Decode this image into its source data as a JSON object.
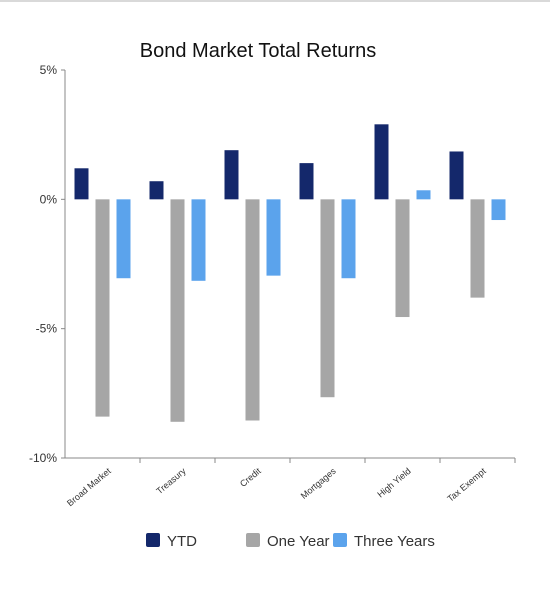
{
  "chart_data": {
    "type": "bar",
    "title": "Bond Market Total Returns",
    "xlabel": "",
    "ylabel": "",
    "categories": [
      "Broad Market",
      "Treasury",
      "Credit",
      "Mortgages",
      "High Yield",
      "Tax Exempt"
    ],
    "series": [
      {
        "name": "YTD",
        "color": "#14286b",
        "values": [
          1.2,
          0.7,
          1.9,
          1.4,
          2.9,
          1.85
        ]
      },
      {
        "name": "One Year",
        "color": "#a6a6a6",
        "values": [
          -8.4,
          -8.6,
          -8.55,
          -7.65,
          -4.55,
          -3.8
        ]
      },
      {
        "name": "Three Years",
        "color": "#5ba3ec",
        "values": [
          -3.05,
          -3.15,
          -2.95,
          -3.05,
          0.35,
          -0.8
        ]
      }
    ],
    "ylim": [
      -10,
      5
    ],
    "yticks": [
      5,
      0,
      -5,
      -10
    ],
    "ytick_labels": [
      "5%",
      "0%",
      "-5%",
      "-10%"
    ],
    "grid": false,
    "legend_position": "bottom"
  }
}
